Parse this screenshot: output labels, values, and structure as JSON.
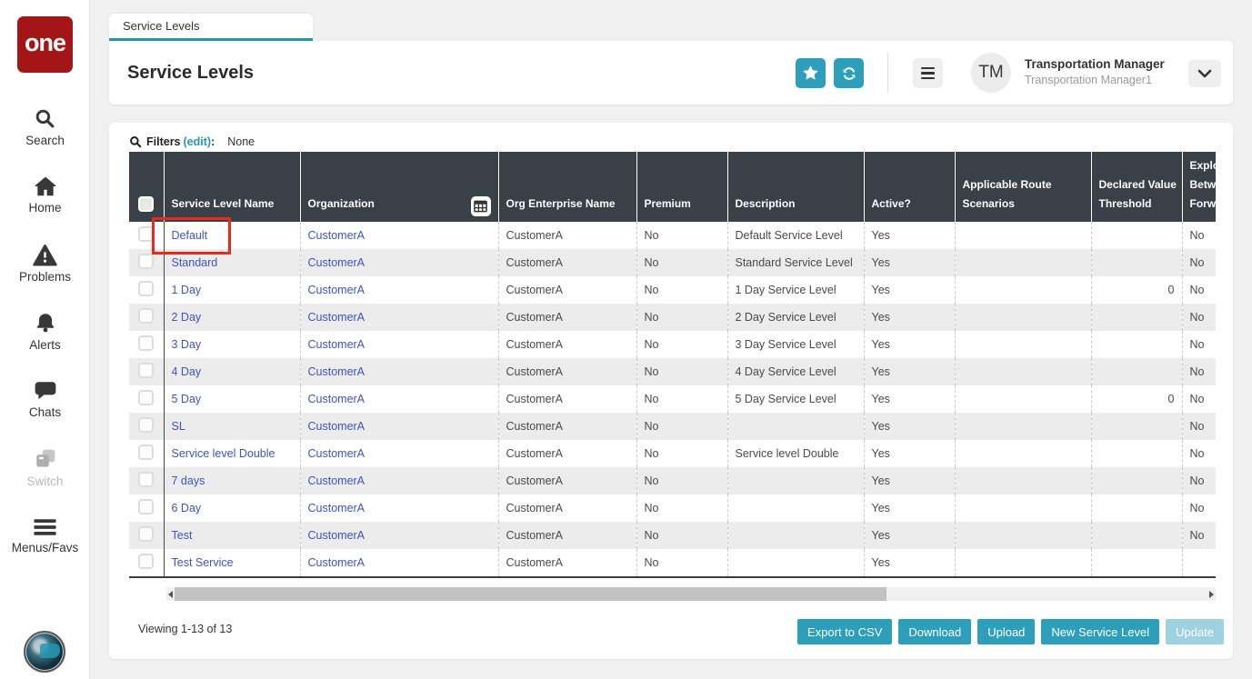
{
  "colors": {
    "teal": "#2e9fba",
    "table_header": "#3a4047",
    "link_blue": "#3d54c4",
    "logo_red": "#a41517",
    "annotation_red": "#e8291c"
  },
  "sidebar": {
    "logo_text": "one",
    "items": [
      {
        "label": "Search"
      },
      {
        "label": "Home"
      },
      {
        "label": "Problems"
      },
      {
        "label": "Alerts"
      },
      {
        "label": "Chats"
      },
      {
        "label": "Switch",
        "disabled": true
      },
      {
        "label": "Menus/Favs"
      }
    ]
  },
  "tab": {
    "label": "Service Levels"
  },
  "header": {
    "title": "Service Levels",
    "user_initials": "TM",
    "user_name": "Transportation Manager",
    "user_role": "Transportation Manager1"
  },
  "filters": {
    "label": "Filters",
    "edit_label": "(edit)",
    "separator": ":",
    "value": "None"
  },
  "table": {
    "columns": [
      {
        "lines": [
          "Service Level Name"
        ]
      },
      {
        "lines": [
          "Organization"
        ],
        "icon": "grid-icon"
      },
      {
        "lines": [
          "Org Enterprise Name"
        ]
      },
      {
        "lines": [
          "Premium"
        ]
      },
      {
        "lines": [
          "Description"
        ]
      },
      {
        "lines": [
          "Active?"
        ]
      },
      {
        "lines": [
          "Applicable Route",
          "Scenarios"
        ]
      },
      {
        "lines": [
          "Declared Value",
          "Threshold"
        ]
      },
      {
        "lines": [
          "Explor",
          "Betwe",
          "Forwa"
        ]
      }
    ],
    "rows": [
      {
        "name": "Default",
        "organization": "CustomerA",
        "org_enterprise_name": "CustomerA",
        "premium": "No",
        "description": "Default Service Level",
        "active": "Yes",
        "applicable_route_scenarios": "",
        "declared_value_threshold": "",
        "explode": "No"
      },
      {
        "name": "Standard",
        "organization": "CustomerA",
        "org_enterprise_name": "CustomerA",
        "premium": "No",
        "description": "Standard Service Level",
        "active": "Yes",
        "applicable_route_scenarios": "",
        "declared_value_threshold": "",
        "explode": "No"
      },
      {
        "name": "1 Day",
        "organization": "CustomerA",
        "org_enterprise_name": "CustomerA",
        "premium": "No",
        "description": "1 Day Service Level",
        "active": "Yes",
        "applicable_route_scenarios": "",
        "declared_value_threshold": "0",
        "explode": "No"
      },
      {
        "name": "2 Day",
        "organization": "CustomerA",
        "org_enterprise_name": "CustomerA",
        "premium": "No",
        "description": "2 Day Service Level",
        "active": "Yes",
        "applicable_route_scenarios": "",
        "declared_value_threshold": "",
        "explode": "No"
      },
      {
        "name": "3 Day",
        "organization": "CustomerA",
        "org_enterprise_name": "CustomerA",
        "premium": "No",
        "description": "3 Day Service Level",
        "active": "Yes",
        "applicable_route_scenarios": "",
        "declared_value_threshold": "",
        "explode": "No"
      },
      {
        "name": "4 Day",
        "organization": "CustomerA",
        "org_enterprise_name": "CustomerA",
        "premium": "No",
        "description": "4 Day Service Level",
        "active": "Yes",
        "applicable_route_scenarios": "",
        "declared_value_threshold": "",
        "explode": "No"
      },
      {
        "name": "5 Day",
        "organization": "CustomerA",
        "org_enterprise_name": "CustomerA",
        "premium": "No",
        "description": "5 Day Service Level",
        "active": "Yes",
        "applicable_route_scenarios": "",
        "declared_value_threshold": "0",
        "explode": "No"
      },
      {
        "name": "SL",
        "organization": "CustomerA",
        "org_enterprise_name": "CustomerA",
        "premium": "No",
        "description": "",
        "active": "Yes",
        "applicable_route_scenarios": "",
        "declared_value_threshold": "",
        "explode": "No"
      },
      {
        "name": "Service level Double",
        "organization": "CustomerA",
        "org_enterprise_name": "CustomerA",
        "premium": "No",
        "description": "Service level Double",
        "active": "Yes",
        "applicable_route_scenarios": "",
        "declared_value_threshold": "",
        "explode": "No"
      },
      {
        "name": "7 days",
        "organization": "CustomerA",
        "org_enterprise_name": "CustomerA",
        "premium": "No",
        "description": "",
        "active": "Yes",
        "applicable_route_scenarios": "",
        "declared_value_threshold": "",
        "explode": "No"
      },
      {
        "name": "6 Day",
        "organization": "CustomerA",
        "org_enterprise_name": "CustomerA",
        "premium": "No",
        "description": "",
        "active": "Yes",
        "applicable_route_scenarios": "",
        "declared_value_threshold": "",
        "explode": "No"
      },
      {
        "name": "Test",
        "organization": "CustomerA",
        "org_enterprise_name": "CustomerA",
        "premium": "No",
        "description": "",
        "active": "Yes",
        "applicable_route_scenarios": "",
        "declared_value_threshold": "",
        "explode": "No"
      },
      {
        "name": "Test Service",
        "organization": "CustomerA",
        "org_enterprise_name": "CustomerA",
        "premium": "No",
        "description": "",
        "active": "Yes",
        "applicable_route_scenarios": "",
        "declared_value_threshold": "",
        "explode": ""
      }
    ]
  },
  "footer": {
    "viewing": "Viewing 1-13 of 13",
    "buttons": [
      {
        "label": "Export to CSV"
      },
      {
        "label": "Download"
      },
      {
        "label": "Upload"
      },
      {
        "label": "New Service Level"
      },
      {
        "label": "Update",
        "disabled": true
      }
    ]
  }
}
